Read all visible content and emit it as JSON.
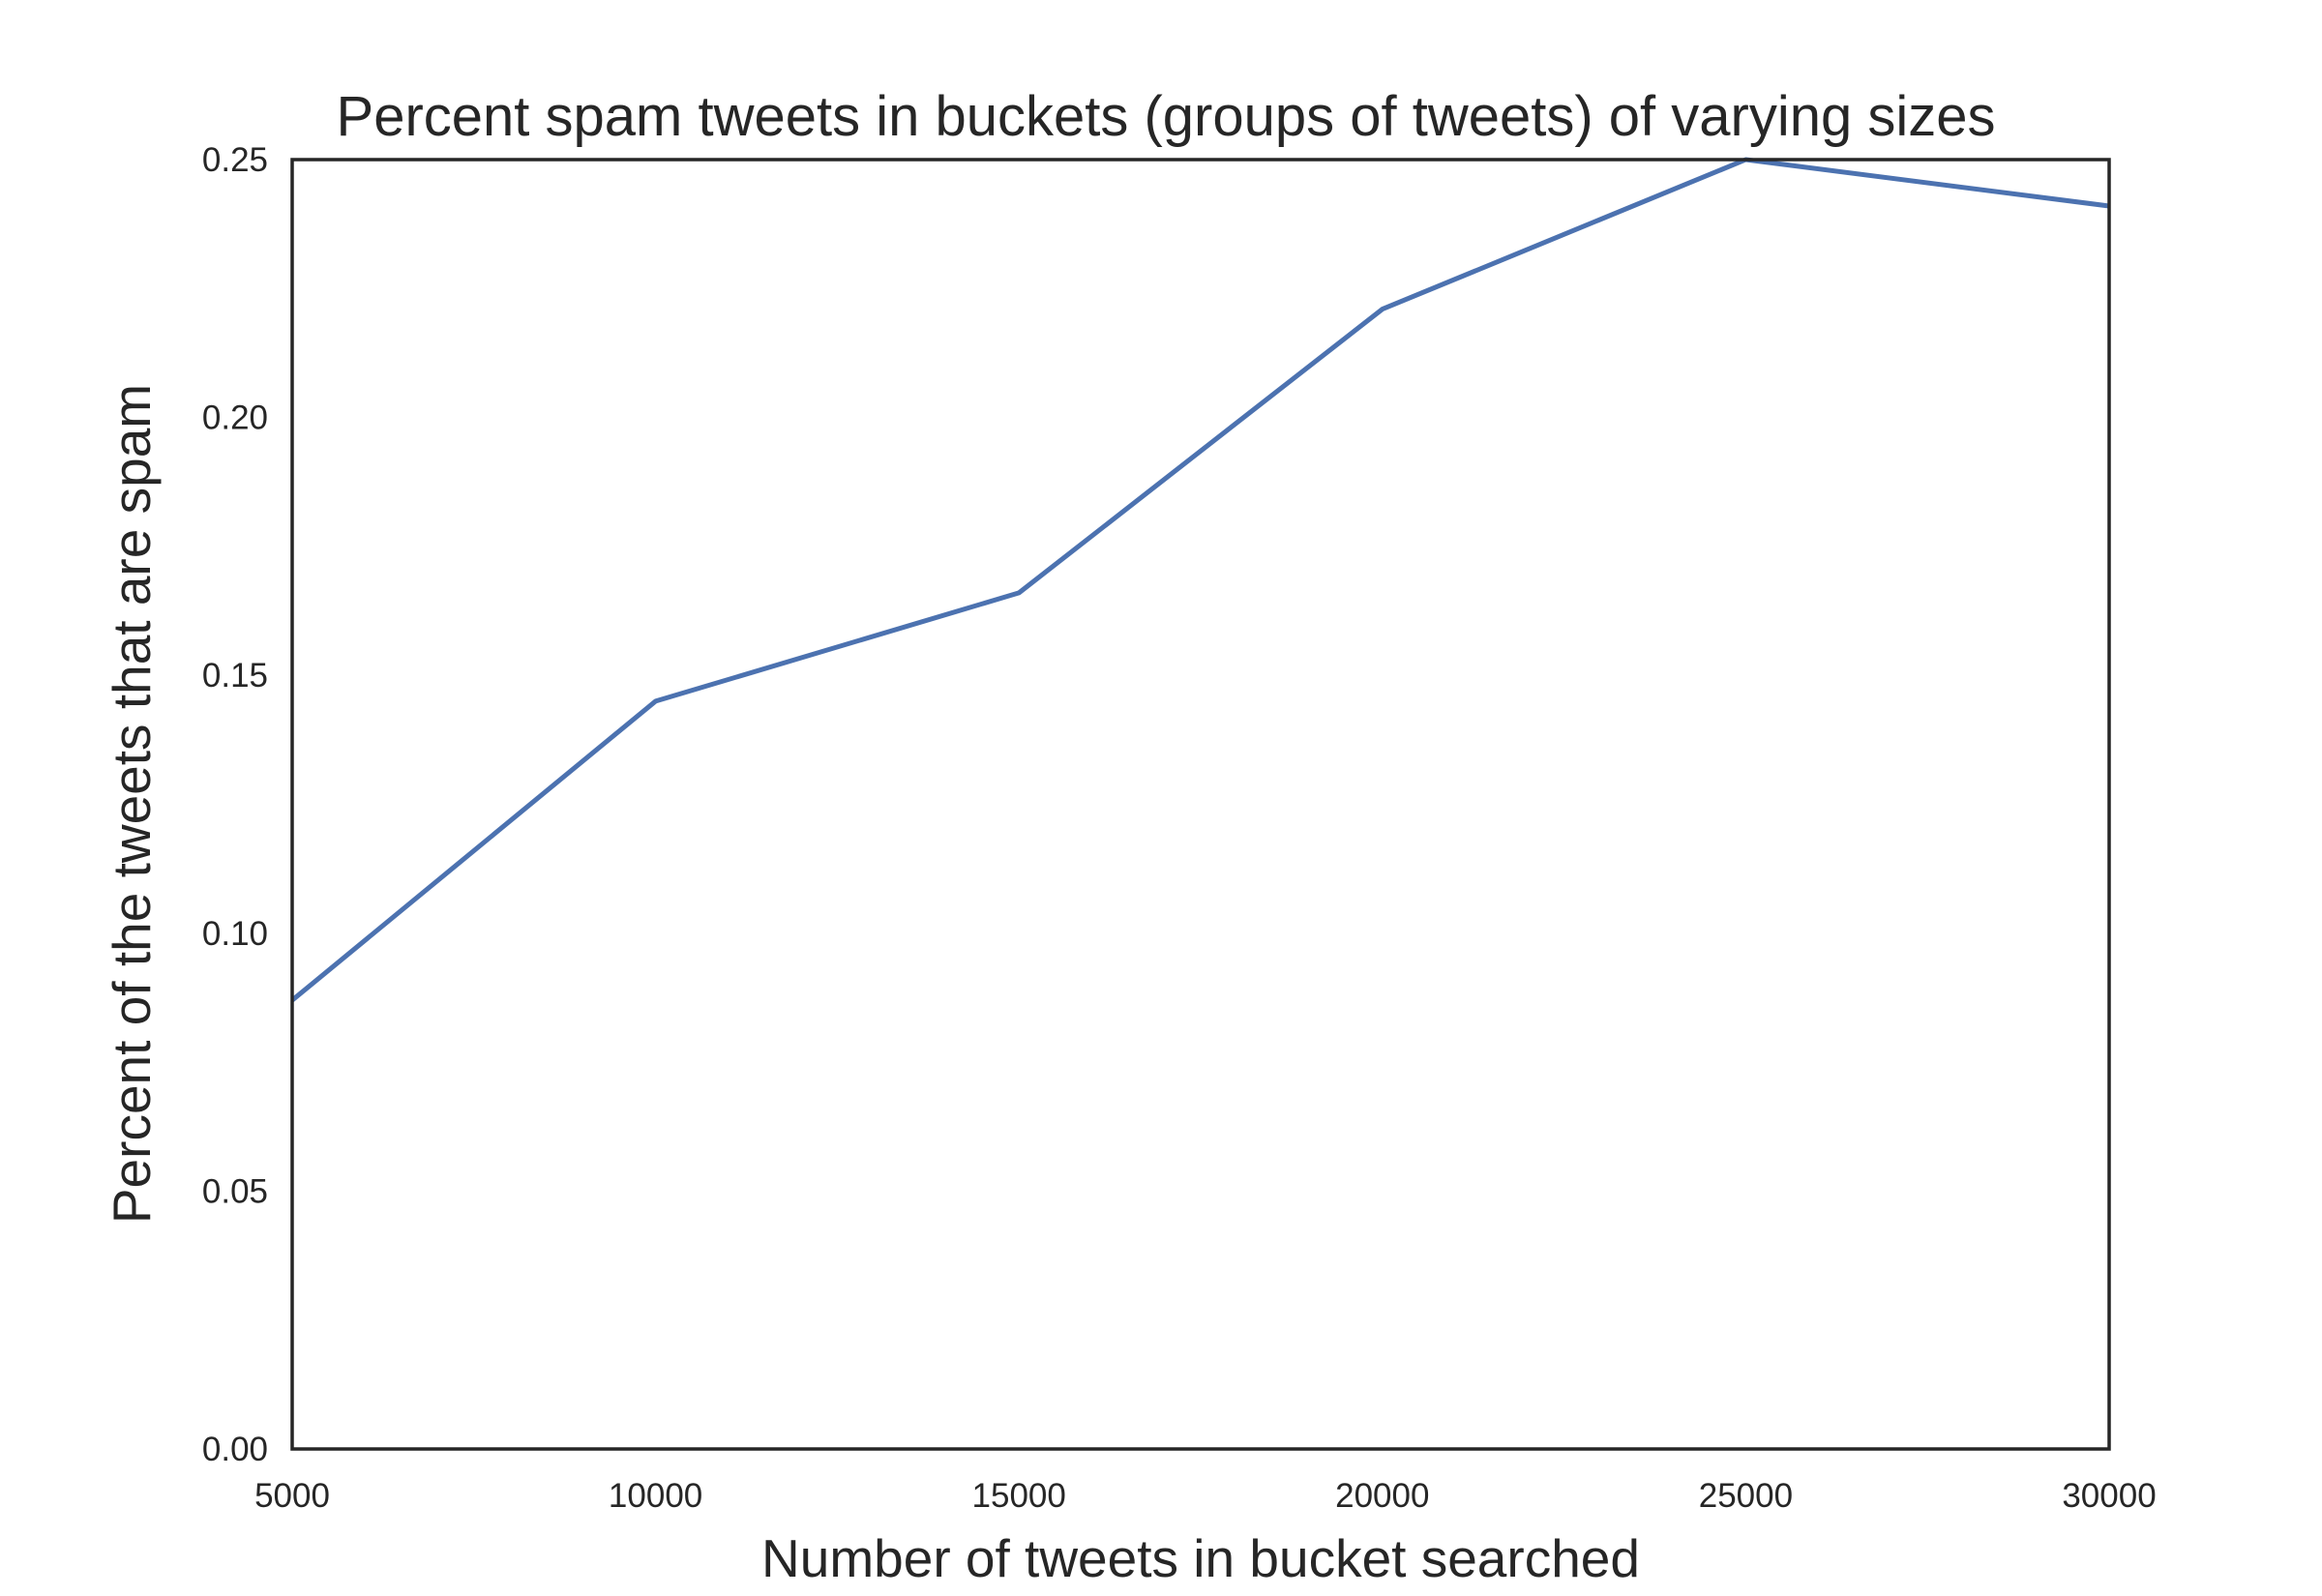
{
  "chart_data": {
    "type": "line",
    "title": "Percent spam tweets in buckets (groups of tweets) of varying sizes",
    "xlabel": "Number of tweets in bucket searched",
    "ylabel": "Percent of the tweets that are spam",
    "xlim": [
      5000,
      30000
    ],
    "ylim": [
      0,
      0.25
    ],
    "xticks": [
      "5000",
      "10000",
      "15000",
      "20000",
      "25000",
      "30000"
    ],
    "yticks": [
      "0.00",
      "0.05",
      "0.10",
      "0.15",
      "0.20",
      "0.25"
    ],
    "grid": false,
    "legend": "none",
    "series": [
      {
        "color": "#4c72b0",
        "x": [
          5000,
          10000,
          15000,
          20000,
          25000,
          30000
        ],
        "y": [
          0.087,
          0.145,
          0.166,
          0.221,
          0.25,
          0.241
        ]
      }
    ]
  }
}
